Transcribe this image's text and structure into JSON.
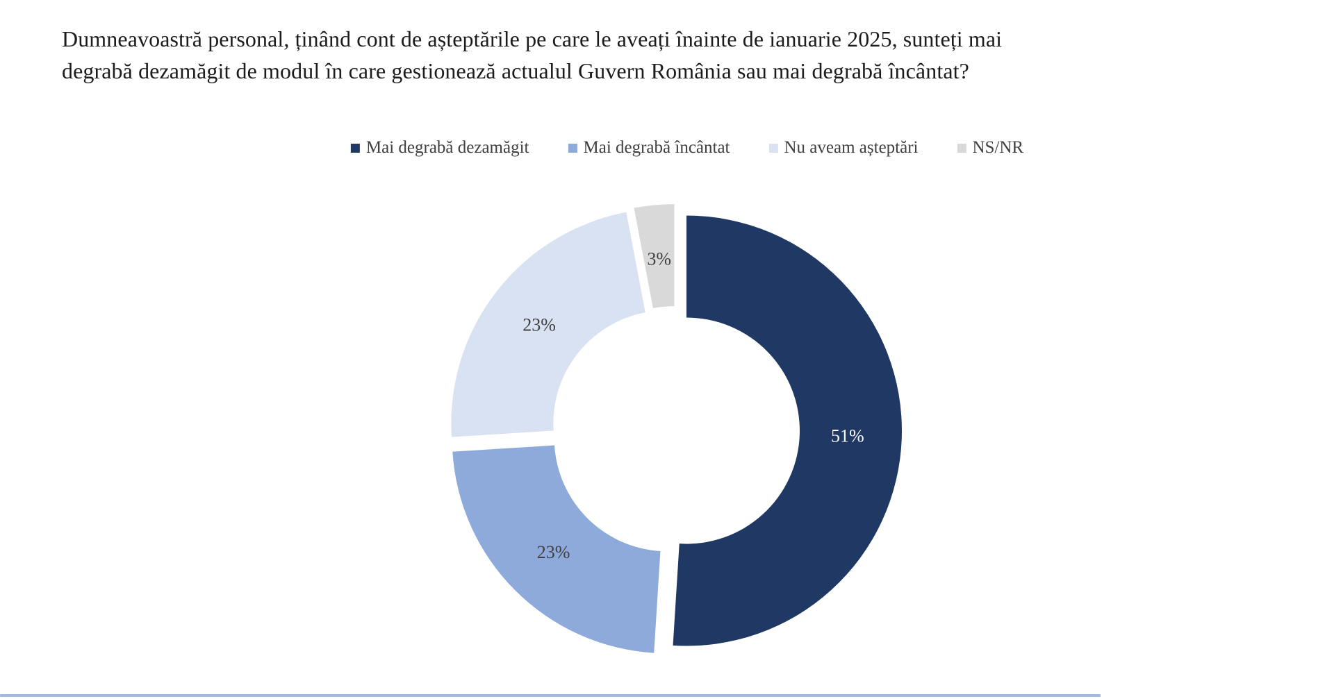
{
  "page": {
    "title": "Dumneavoastră personal, ținând cont de așteptările pe care le aveați înainte de ianuarie 2025, sunteți mai\ndegrabă dezamăgit de modul în care gestionează actualul Guvern România sau mai degrabă încântat?"
  },
  "chart_data": {
    "type": "pie",
    "subtype": "doughnut",
    "title": "",
    "categories": [
      "Mai degrabă dezamăgit",
      "Mai degrabă încântat",
      "Nu aveam așteptări",
      "NS/NR"
    ],
    "values": [
      51,
      23,
      23,
      3
    ],
    "unit": "%",
    "data_labels": [
      "51%",
      "23%",
      "23%",
      "3%"
    ],
    "colors": [
      "#1F3864",
      "#8EAADB",
      "#D9E2F3",
      "#D9D9D9"
    ],
    "data_label_colors": [
      "#FFFFFF",
      "#404040",
      "#404040",
      "#404040"
    ],
    "legend_position": "top",
    "start_angle_deg": 0,
    "direction": "clockwise",
    "exploded": true,
    "grid": false
  },
  "footer": {
    "accent_bar_color": "#A5B8DD"
  }
}
